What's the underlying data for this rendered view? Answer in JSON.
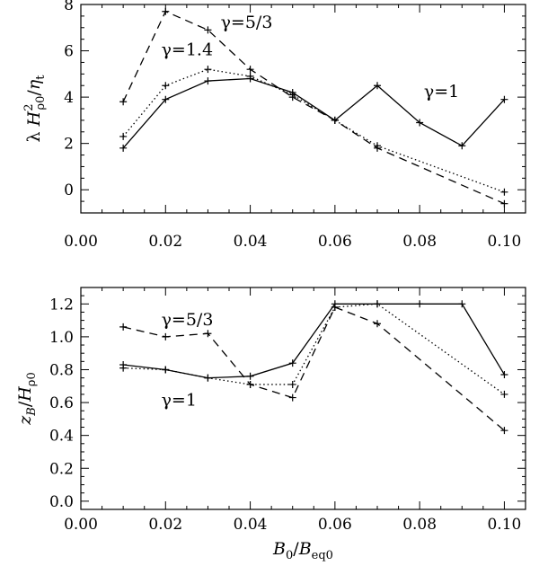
{
  "chart_data": [
    {
      "type": "line",
      "ylabel": "λ H²ρ0/ηt",
      "xlabel": "",
      "xlim": [
        0.0,
        0.105
      ],
      "ylim": [
        -1.0,
        8.0
      ],
      "xticks": [
        "0.00",
        "0.02",
        "0.04",
        "0.06",
        "0.08",
        "0.10"
      ],
      "yticks": [
        "0",
        "2",
        "4",
        "6",
        "8"
      ],
      "series": [
        {
          "name": "γ=1",
          "style": "solid",
          "x": [
            0.01,
            0.02,
            0.03,
            0.04,
            0.05,
            0.06,
            0.07,
            0.08,
            0.09,
            0.1
          ],
          "y": [
            1.8,
            3.9,
            4.7,
            4.8,
            4.2,
            3.0,
            4.5,
            2.9,
            1.9,
            3.9
          ]
        },
        {
          "name": "γ=1.4",
          "style": "dotted",
          "x": [
            0.01,
            0.02,
            0.03,
            0.04,
            0.05,
            0.06,
            0.07,
            0.1
          ],
          "y": [
            2.3,
            4.5,
            5.2,
            4.9,
            4.1,
            3.0,
            1.9,
            -0.1
          ]
        },
        {
          "name": "γ=5/3",
          "style": "dashed",
          "x": [
            0.01,
            0.02,
            0.03,
            0.04,
            0.05,
            0.06,
            0.07,
            0.1
          ],
          "y": [
            3.8,
            7.7,
            6.9,
            5.2,
            4.0,
            3.0,
            1.8,
            -0.6
          ]
        }
      ],
      "annotations": [
        {
          "text": "γ=5/3",
          "x": 0.033,
          "y": 7.0
        },
        {
          "text": "γ=1.4",
          "x": 0.019,
          "y": 5.8
        },
        {
          "text": "γ=1",
          "x": 0.081,
          "y": 4.0
        }
      ]
    },
    {
      "type": "line",
      "ylabel": "zB/Hρ0",
      "xlabel": "B0/Beq0",
      "xlim": [
        0.0,
        0.105
      ],
      "ylim": [
        -0.05,
        1.3
      ],
      "xticks": [
        "0.00",
        "0.02",
        "0.04",
        "0.06",
        "0.08",
        "0.10"
      ],
      "yticks": [
        "0.0",
        "0.2",
        "0.4",
        "0.6",
        "0.8",
        "1.0",
        "1.2"
      ],
      "series": [
        {
          "name": "γ=1",
          "style": "solid",
          "x": [
            0.01,
            0.02,
            0.03,
            0.04,
            0.05,
            0.06,
            0.07,
            0.08,
            0.09,
            0.1
          ],
          "y": [
            0.83,
            0.8,
            0.75,
            0.76,
            0.84,
            1.2,
            1.2,
            1.2,
            1.2,
            0.77
          ]
        },
        {
          "name": "γ=1.4",
          "style": "dotted",
          "x": [
            0.01,
            0.02,
            0.03,
            0.04,
            0.05,
            0.06,
            0.07,
            0.1
          ],
          "y": [
            0.81,
            0.8,
            0.75,
            0.71,
            0.71,
            1.18,
            1.2,
            0.65
          ]
        },
        {
          "name": "γ=5/3",
          "style": "dashed",
          "x": [
            0.01,
            0.02,
            0.03,
            0.04,
            0.05,
            0.06,
            0.07,
            0.1
          ],
          "y": [
            1.06,
            1.0,
            1.02,
            0.71,
            0.63,
            1.18,
            1.08,
            0.43
          ]
        }
      ],
      "annotations": [
        {
          "text": "γ=5/3",
          "x": 0.019,
          "y": 1.07
        },
        {
          "text": "γ=1",
          "x": 0.019,
          "y": 0.58
        }
      ]
    }
  ]
}
